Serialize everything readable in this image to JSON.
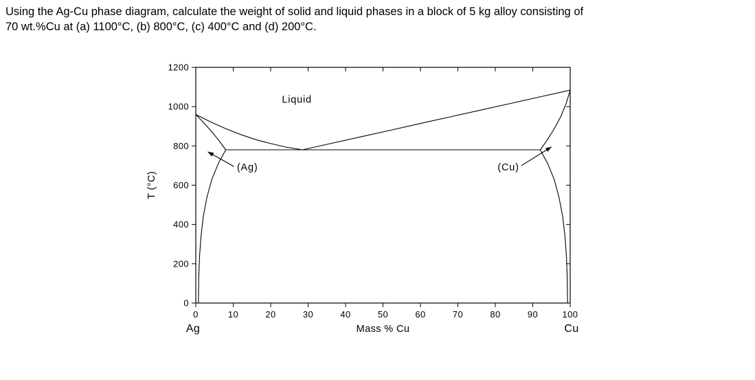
{
  "page": {
    "background": "#ffffff",
    "text_color": "#000000"
  },
  "question": {
    "line1": "Using the Ag-Cu phase diagram, calculate the weight of solid and liquid phases in a block of 5 kg alloy consisting of",
    "line2": "70 wt.%Cu at (a) 1100°C, (b) 800°C, (c) 400°C and (d) 200°C."
  },
  "chart_data": {
    "type": "line",
    "title": "",
    "xlabel": "Mass % Cu",
    "ylabel": "T (°C)",
    "x_left_label": "Ag",
    "x_right_label": "Cu",
    "xlim": [
      0,
      100
    ],
    "ylim": [
      0,
      1200
    ],
    "xticks": [
      0,
      10,
      20,
      30,
      40,
      50,
      60,
      70,
      80,
      90,
      100
    ],
    "yticks": [
      0,
      200,
      400,
      600,
      800,
      1000,
      1200
    ],
    "grid": false,
    "legend": "none",
    "line_color": "#000000",
    "series": [
      {
        "name": "liquidus-left",
        "points": [
          [
            0,
            960
          ],
          [
            4,
            922
          ],
          [
            8,
            888
          ],
          [
            12,
            858
          ],
          [
            16,
            832
          ],
          [
            20,
            812
          ],
          [
            24,
            794
          ],
          [
            28.5,
            780
          ]
        ]
      },
      {
        "name": "liquidus-right",
        "points": [
          [
            28.5,
            780
          ],
          [
            36,
            812
          ],
          [
            44,
            846
          ],
          [
            52,
            880
          ],
          [
            60,
            914
          ],
          [
            68,
            948
          ],
          [
            76,
            982
          ],
          [
            84,
            1016
          ],
          [
            92,
            1050
          ],
          [
            100,
            1084
          ]
        ]
      },
      {
        "name": "solidus-left",
        "points": [
          [
            0,
            960
          ],
          [
            2,
            920
          ],
          [
            4,
            878
          ],
          [
            6,
            832
          ],
          [
            8,
            780
          ]
        ]
      },
      {
        "name": "solidus-right",
        "points": [
          [
            100,
            1084
          ],
          [
            99,
            1020
          ],
          [
            97.5,
            950
          ],
          [
            95.5,
            880
          ],
          [
            93.5,
            820
          ],
          [
            92,
            780
          ]
        ]
      },
      {
        "name": "eutectic-isotherm",
        "points": [
          [
            8,
            780
          ],
          [
            92,
            780
          ]
        ]
      },
      {
        "name": "solvus-left",
        "points": [
          [
            8,
            780
          ],
          [
            6,
            710
          ],
          [
            4.3,
            630
          ],
          [
            3,
            540
          ],
          [
            2,
            440
          ],
          [
            1.4,
            340
          ],
          [
            1,
            240
          ],
          [
            0.8,
            140
          ],
          [
            0.7,
            0
          ]
        ]
      },
      {
        "name": "solvus-right",
        "points": [
          [
            92,
            780
          ],
          [
            94,
            710
          ],
          [
            95.7,
            630
          ],
          [
            97,
            540
          ],
          [
            98,
            440
          ],
          [
            98.6,
            340
          ],
          [
            99,
            240
          ],
          [
            99.2,
            140
          ],
          [
            99.3,
            0
          ]
        ]
      }
    ],
    "annotations": [
      {
        "text": "Liquid",
        "x": 27,
        "y": 1020
      },
      {
        "text": "(Ag)",
        "x": 13.8,
        "y": 675
      },
      {
        "text": "(Cu)",
        "x": 83.5,
        "y": 675
      }
    ],
    "arrows": [
      {
        "from": [
          10.2,
          695
        ],
        "to": [
          3.2,
          770
        ]
      },
      {
        "from": [
          87.0,
          700
        ],
        "to": [
          95.0,
          795
        ]
      }
    ]
  }
}
